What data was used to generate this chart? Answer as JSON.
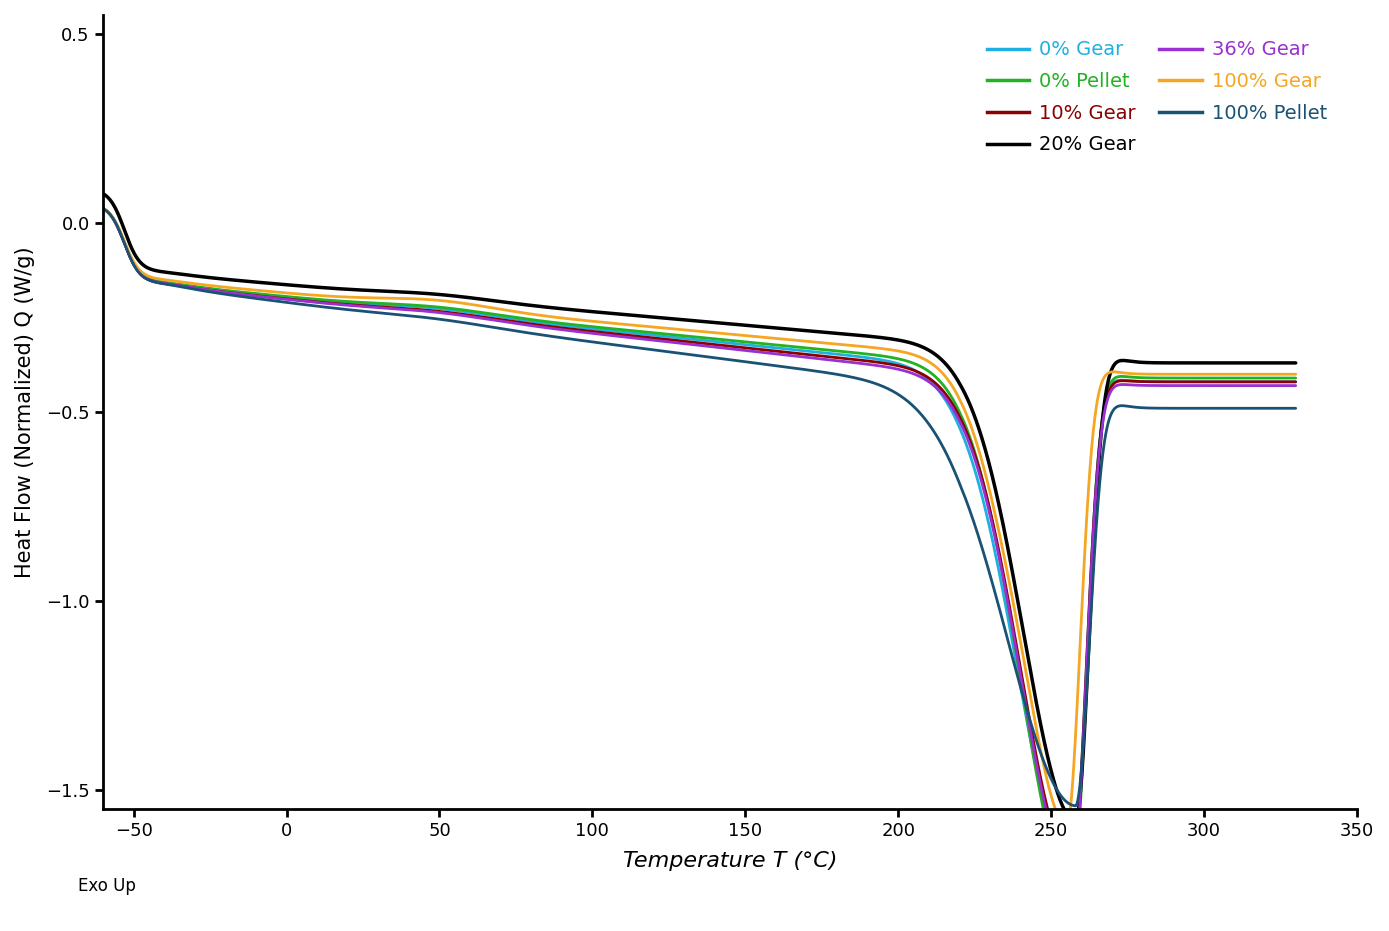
{
  "xlabel": "Temperature T (°C)",
  "ylabel": "Heat Flow (Normalized) Q (W/g)",
  "xlim": [
    -60,
    350
  ],
  "ylim": [
    -1.55,
    0.55
  ],
  "xticks": [
    -50,
    0,
    50,
    100,
    150,
    200,
    250,
    300,
    350
  ],
  "yticks": [
    -1.5,
    -1.0,
    -0.5,
    0.0,
    0.5
  ],
  "exo_label": "Exo Up",
  "series": [
    {
      "label": "0% Gear",
      "color": "#1EB0E0",
      "lw": 2.0
    },
    {
      "label": "0% Pellet",
      "color": "#22B222",
      "lw": 2.0
    },
    {
      "label": "10% Gear",
      "color": "#8B0000",
      "lw": 2.0
    },
    {
      "label": "20% Gear",
      "color": "#000000",
      "lw": 2.5
    },
    {
      "label": "36% Gear",
      "color": "#9B30D0",
      "lw": 2.0
    },
    {
      "label": "100% Gear",
      "color": "#F5A623",
      "lw": 2.0
    },
    {
      "label": "100% Pellet",
      "color": "#1A5276",
      "lw": 2.0
    }
  ],
  "background_color": "#ffffff"
}
